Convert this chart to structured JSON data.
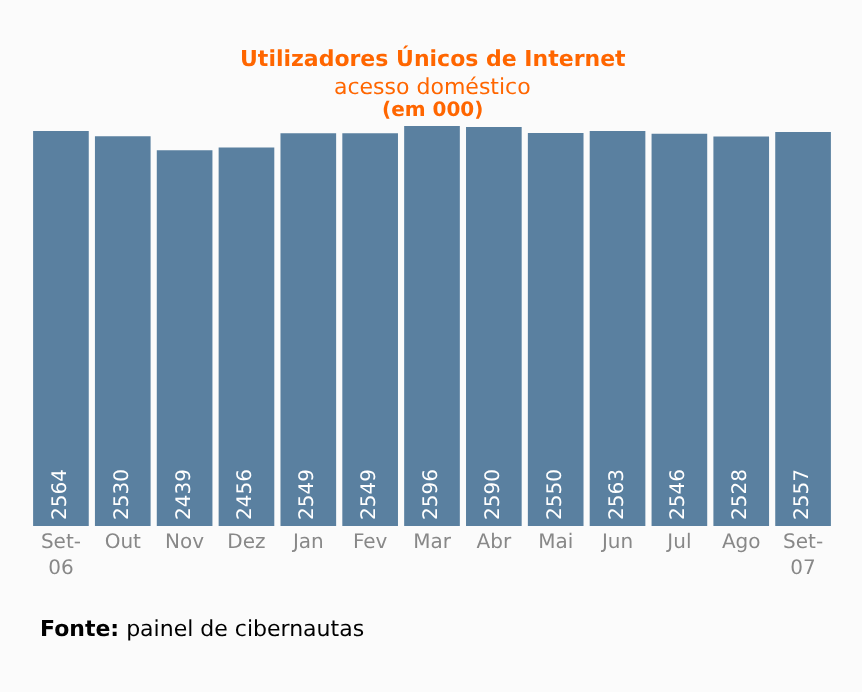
{
  "chart_data": {
    "type": "bar",
    "title": "Utilizadores Únicos de Internet",
    "subtitle": "acesso doméstico",
    "annotations": [
      "(em 000)",
      "Fonte: painel de cibernautas"
    ],
    "categories": [
      "Set-\n06",
      "Out",
      "Nov",
      "Dez",
      "Jan",
      "Fev",
      "Mar",
      "Abr",
      "Mai",
      "Jun",
      "Jul",
      "Ago",
      "Set-\n07"
    ],
    "values": [
      2564,
      2530,
      2439,
      2456,
      2549,
      2549,
      2596,
      2590,
      2550,
      2563,
      2546,
      2528,
      2557
    ],
    "color": "#5a80a0",
    "data_labels": true
  }
}
